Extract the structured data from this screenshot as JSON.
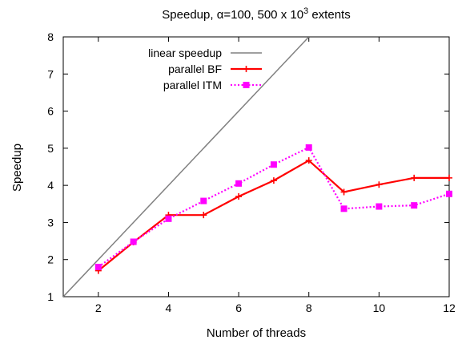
{
  "chart_data": {
    "type": "line",
    "title": {
      "prefix": "Speedup, ",
      "alpha_symbol": "α",
      "alpha_rest": "=100, 500 x 10",
      "superscript": "3",
      "suffix": " extents"
    },
    "xlabel": "Number of threads",
    "ylabel": "Speedup",
    "xlim": [
      1,
      12
    ],
    "ylim": [
      1,
      8
    ],
    "xticks": [
      2,
      4,
      6,
      8,
      10,
      12
    ],
    "yticks": [
      1,
      2,
      3,
      4,
      5,
      6,
      7,
      8
    ],
    "grid": false,
    "legend_position": "top-left",
    "series": [
      {
        "name": "linear speedup",
        "color": "#808080",
        "marker": "none",
        "dash": "solid",
        "x": [
          1,
          8
        ],
        "y": [
          1,
          8
        ]
      },
      {
        "name": "parallel BF",
        "color": "#ff0000",
        "marker": "plus",
        "dash": "solid",
        "x": [
          2,
          3,
          4,
          5,
          6,
          7,
          8,
          9,
          10,
          11,
          12
        ],
        "y": [
          1.7,
          2.47,
          3.2,
          3.2,
          3.7,
          4.13,
          4.67,
          3.82,
          4.02,
          4.2,
          4.2
        ]
      },
      {
        "name": "parallel ITM",
        "color": "#ff00ff",
        "marker": "square",
        "dash": "dotted",
        "x": [
          2,
          3,
          4,
          5,
          6,
          7,
          8,
          9,
          10,
          11,
          12
        ],
        "y": [
          1.8,
          2.48,
          3.1,
          3.58,
          4.05,
          4.56,
          5.02,
          3.37,
          3.43,
          3.46,
          3.77
        ]
      }
    ]
  }
}
